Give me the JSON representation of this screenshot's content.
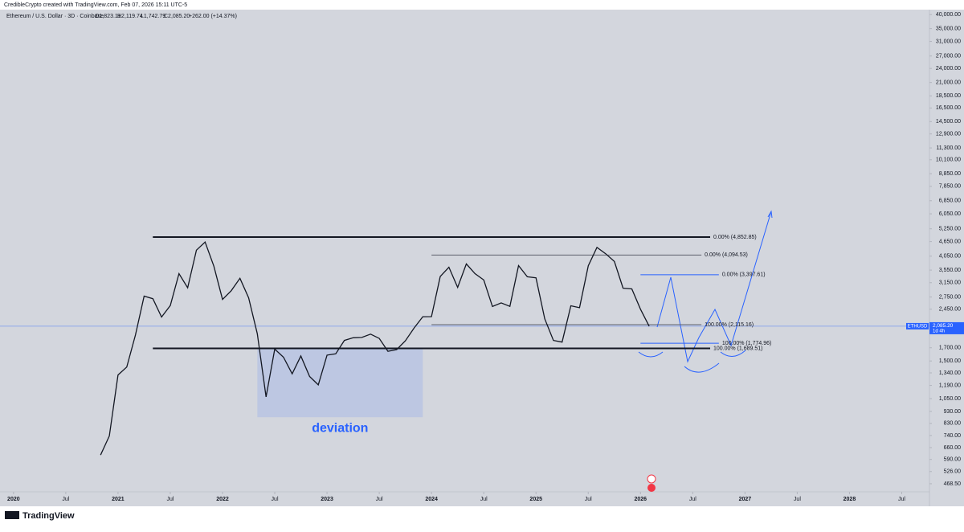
{
  "header": {
    "credit": "CredibleCrypto created with TradingView.com, Feb 07, 2026 15:11 UTC-5",
    "symbol": "Ethereum / U.S. Dollar · 3D · Coinbase",
    "ohlc": [
      "O1,823.11",
      "H2,119.74",
      "L1,742.79",
      "C2,085.20"
    ],
    "change": "+262.00 (+14.37%)"
  },
  "chart_data": {
    "type": "line",
    "log_scale": true,
    "grid": false,
    "color": "#131722",
    "x": [
      "2020-11",
      "2020-12",
      "2021-01",
      "2021-02",
      "2021-03",
      "2021-04",
      "2021-05",
      "2021-06",
      "2021-07",
      "2021-08",
      "2021-09",
      "2021-10",
      "2021-11",
      "2021-12",
      "2022-01",
      "2022-02",
      "2022-03",
      "2022-04",
      "2022-05",
      "2022-06",
      "2022-07",
      "2022-08",
      "2022-09",
      "2022-10",
      "2022-11",
      "2022-12",
      "2023-01",
      "2023-02",
      "2023-03",
      "2023-04",
      "2023-05",
      "2023-06",
      "2023-07",
      "2023-08",
      "2023-09",
      "2023-10",
      "2023-11",
      "2023-12",
      "2024-01",
      "2024-02",
      "2024-03",
      "2024-04",
      "2024-05",
      "2024-06",
      "2024-07",
      "2024-08",
      "2024-09",
      "2024-10",
      "2024-11",
      "2024-12",
      "2025-01",
      "2025-02",
      "2025-03",
      "2025-04",
      "2025-05",
      "2025-06",
      "2025-07",
      "2025-08",
      "2025-09",
      "2025-10",
      "2025-11",
      "2025-12",
      "2026-01",
      "2026-02"
    ],
    "values": [
      615,
      737,
      1314,
      1416,
      1918,
      2773,
      2706,
      2275,
      2536,
      3433,
      3001,
      4288,
      4631,
      3683,
      2688,
      2919,
      3283,
      2729,
      1942,
      1067,
      1679,
      1554,
      1328,
      1572,
      1295,
      1196,
      1585,
      1605,
      1822,
      1869,
      1875,
      1934,
      1857,
      1645,
      1671,
      1815,
      2051,
      2281,
      2283,
      3340,
      3647,
      3014,
      3763,
      3433,
      3232,
      2513,
      2602,
      2518,
      3705,
      3332,
      3300,
      2237,
      1822,
      1794,
      2530,
      2485,
      3698,
      4400,
      4145,
      3850,
      2990,
      2970,
      2450,
      2085
    ],
    "xlim": [
      "2019-12",
      "2028-10"
    ],
    "xticks": [
      {
        "value": "2020-01",
        "label": "2020"
      },
      {
        "value": "2020-07",
        "label": "Jul"
      },
      {
        "value": "2021-01",
        "label": "2021"
      },
      {
        "value": "2021-07",
        "label": "Jul"
      },
      {
        "value": "2022-01",
        "label": "2022"
      },
      {
        "value": "2022-07",
        "label": "Jul"
      },
      {
        "value": "2023-01",
        "label": "2023"
      },
      {
        "value": "2023-07",
        "label": "Jul"
      },
      {
        "value": "2024-01",
        "label": "2024"
      },
      {
        "value": "2024-07",
        "label": "Jul"
      },
      {
        "value": "2025-01",
        "label": "2025"
      },
      {
        "value": "2025-07",
        "label": "Jul"
      },
      {
        "value": "2026-01",
        "label": "2026"
      },
      {
        "value": "2026-07",
        "label": "Jul"
      },
      {
        "value": "2027-01",
        "label": "2027"
      },
      {
        "value": "2027-07",
        "label": "Jul"
      },
      {
        "value": "2028-01",
        "label": "2028"
      },
      {
        "value": "2028-07",
        "label": "Jul"
      }
    ],
    "ylim": [
      434,
      41900
    ],
    "yticks": [
      {
        "value": 40000,
        "label": "40,000.00"
      },
      {
        "value": 35000,
        "label": "35,000.00"
      },
      {
        "value": 31000,
        "label": "31,000.00"
      },
      {
        "value": 27000,
        "label": "27,000.00"
      },
      {
        "value": 24000,
        "label": "24,000.00"
      },
      {
        "value": 21000,
        "label": "21,000.00"
      },
      {
        "value": 18500,
        "label": "18,500.00"
      },
      {
        "value": 16500,
        "label": "16,500.00"
      },
      {
        "value": 14500,
        "label": "14,500.00"
      },
      {
        "value": 12900,
        "label": "12,900.00"
      },
      {
        "value": 11300,
        "label": "11,300.00"
      },
      {
        "value": 10100,
        "label": "10,100.00"
      },
      {
        "value": 8850,
        "label": "8,850.00"
      },
      {
        "value": 7850,
        "label": "7,850.00"
      },
      {
        "value": 6850,
        "label": "6,850.00"
      },
      {
        "value": 6050,
        "label": "6,050.00"
      },
      {
        "value": 5250,
        "label": "5,250.00"
      },
      {
        "value": 4650,
        "label": "4,650.00"
      },
      {
        "value": 4050,
        "label": "4,050.00"
      },
      {
        "value": 3550,
        "label": "3,550.00"
      },
      {
        "value": 3150,
        "label": "3,150.00"
      },
      {
        "value": 2750,
        "label": "2,750.00"
      },
      {
        "value": 2450,
        "label": "2,450.00"
      },
      {
        "value": 1700,
        "label": "1,700.00"
      },
      {
        "value": 1500,
        "label": "1,500.00"
      },
      {
        "value": 1340,
        "label": "1,340.00"
      },
      {
        "value": 1190,
        "label": "1,190.00"
      },
      {
        "value": 1050,
        "label": "1,050.00"
      },
      {
        "value": 930,
        "label": "930.00"
      },
      {
        "value": 830,
        "label": "830.00"
      },
      {
        "value": 740,
        "label": "740.00"
      },
      {
        "value": 660,
        "label": "660.00"
      },
      {
        "value": 590,
        "label": "590.00"
      },
      {
        "value": 526,
        "label": "526.00"
      },
      {
        "value": 468.5,
        "label": "468.50"
      }
    ],
    "levels": [
      {
        "value": 4852.85,
        "label": "0.00% (4,852.85)",
        "start": "2021-05",
        "end": "2026-09",
        "color": "#131722",
        "width": 2
      },
      {
        "value": 1689.51,
        "label": "100.00% (1,689.51)",
        "start": "2021-05",
        "end": "2026-09",
        "color": "#131722",
        "width": 2
      },
      {
        "value": 4094.53,
        "label": "0.00% (4,094.53)",
        "start": "2024-01",
        "end": "2026-08",
        "color": "#5d606b",
        "width": 1
      },
      {
        "value": 2115.16,
        "label": "100.00% (2,115.16)",
        "start": "2024-01",
        "end": "2026-08",
        "color": "#5d606b",
        "width": 1
      },
      {
        "value": 3397.61,
        "label": "0.00% (3,397.61)",
        "start": "2026-01",
        "end": "2026-10",
        "color": "#2962ff",
        "width": 1
      },
      {
        "value": 1774.96,
        "label": "100.00% (1,774.96)",
        "start": "2026-01",
        "end": "2026-10",
        "color": "#2962ff",
        "width": 1
      }
    ],
    "deviation": {
      "label": "deviation",
      "top": 1689.51,
      "bottom": 880,
      "start": "2022-05",
      "end": "2023-12"
    },
    "last": {
      "symbol": "ETHUSD",
      "price": {
        "value": 2085.2,
        "label": "2,085.20"
      },
      "countdown": "1d 4h"
    }
  },
  "footer": {
    "brand": "TradingView"
  }
}
